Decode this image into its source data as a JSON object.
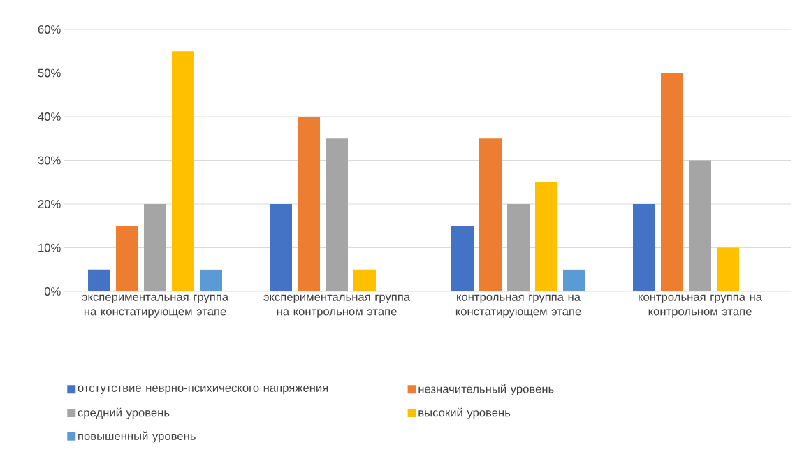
{
  "chart_data": {
    "type": "bar",
    "categories": [
      "экспериментальная группа на констатирующем этапе",
      "экспериментальная группа на контрольном этапе",
      "контрольная группа на констатирующем этапе",
      "контрольная группа на контрольном этапе"
    ],
    "series": [
      {
        "name": "отстутствие неврно-психического напряжения",
        "color": "#4472c4",
        "values": [
          5,
          20,
          15,
          20
        ]
      },
      {
        "name": "незначительный уровень",
        "color": "#ed7d31",
        "values": [
          15,
          40,
          35,
          50
        ]
      },
      {
        "name": "средний уровень",
        "color": "#a5a5a5",
        "values": [
          20,
          35,
          20,
          30
        ]
      },
      {
        "name": "высокий уровень",
        "color": "#ffc000",
        "values": [
          55,
          5,
          25,
          10
        ]
      },
      {
        "name": "повышенный уровень",
        "color": "#5b9bd5",
        "values": [
          5,
          0,
          5,
          0
        ]
      }
    ],
    "ylim": [
      0,
      60
    ],
    "yticks": [
      {
        "value": 0,
        "label": "0%"
      },
      {
        "value": 10,
        "label": "10%"
      },
      {
        "value": 20,
        "label": "20%"
      },
      {
        "value": 30,
        "label": "30%"
      },
      {
        "value": 40,
        "label": "40%"
      },
      {
        "value": 50,
        "label": "50%"
      },
      {
        "value": 60,
        "label": "60%"
      }
    ],
    "grid": "y",
    "legend": "bottom"
  }
}
